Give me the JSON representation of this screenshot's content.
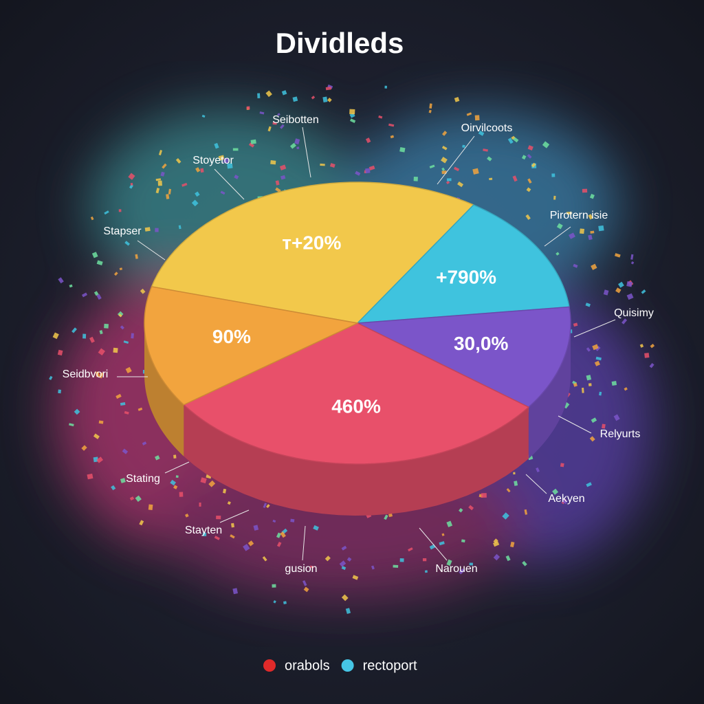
{
  "chart_data": {
    "type": "pie",
    "title": "Dividleds",
    "categories": [
      "Yellow",
      "Cyan",
      "Purple",
      "Pink",
      "Orange"
    ],
    "values": [
      30,
      14,
      12,
      30,
      14
    ],
    "colors": [
      "#f2c84b",
      "#3fc3de",
      "#7b55c9",
      "#e8506a",
      "#f2a43e"
    ],
    "slice_texts": [
      "т+20%",
      "+790%",
      "30,0%",
      "460%",
      "90%"
    ],
    "callouts": [
      "Seibotten",
      "Oirvilcoots",
      "Stoyetor",
      "Pirotern isie",
      "Stapser",
      "Quisimy",
      "Seidbvori",
      "Relyurts",
      "Stating",
      "Aekyen",
      "Stayten",
      "gusion",
      "Narouen"
    ],
    "legend": [
      {
        "name": "orabols",
        "color": "#e02a2a"
      },
      {
        "name": "rectoport",
        "color": "#46c6e6"
      }
    ]
  }
}
